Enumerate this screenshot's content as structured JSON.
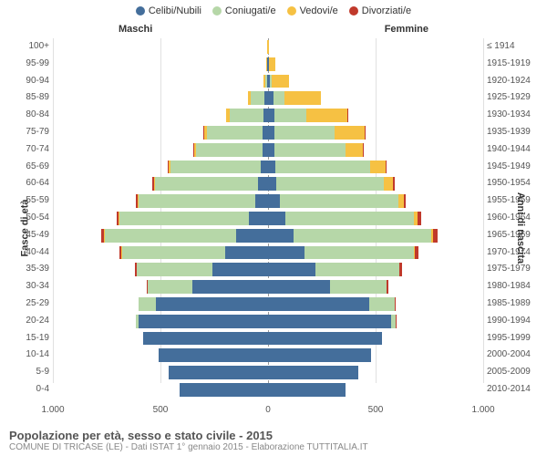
{
  "type": "population-pyramid",
  "legend": [
    {
      "label": "Celibi/Nubili",
      "color": "#446e9b"
    },
    {
      "label": "Coniugati/e",
      "color": "#b6d7a8"
    },
    {
      "label": "Vedovi/e",
      "color": "#f6c143"
    },
    {
      "label": "Divorziati/e",
      "color": "#c0392b"
    }
  ],
  "header_left": "Maschi",
  "header_right": "Femmine",
  "y_left_title": "Fasce di età",
  "y_right_title": "Anni di nascita",
  "xmax": 1000,
  "x_ticks_left": [
    1000,
    500,
    0
  ],
  "x_ticks_right": [
    500,
    1000
  ],
  "x_tick_labels_left": [
    "1.000",
    "500",
    "0"
  ],
  "x_tick_labels_right": [
    "500",
    "1.000"
  ],
  "grid_color": "#e0e0e0",
  "background_color": "#ffffff",
  "bar_gap": 2,
  "rows": [
    {
      "age": "100+",
      "birth": "≤ 1914",
      "m": [
        0,
        0,
        3,
        0
      ],
      "f": [
        0,
        0,
        6,
        0
      ]
    },
    {
      "age": "95-99",
      "birth": "1915-1919",
      "m": [
        3,
        0,
        4,
        0
      ],
      "f": [
        3,
        3,
        30,
        0
      ]
    },
    {
      "age": "90-94",
      "birth": "1920-1924",
      "m": [
        6,
        8,
        6,
        0
      ],
      "f": [
        8,
        10,
        80,
        0
      ]
    },
    {
      "age": "85-89",
      "birth": "1925-1929",
      "m": [
        15,
        65,
        15,
        0
      ],
      "f": [
        25,
        50,
        170,
        0
      ]
    },
    {
      "age": "80-84",
      "birth": "1930-1934",
      "m": [
        20,
        160,
        15,
        0
      ],
      "f": [
        30,
        150,
        190,
        3
      ]
    },
    {
      "age": "75-79",
      "birth": "1935-1939",
      "m": [
        25,
        260,
        12,
        3
      ],
      "f": [
        30,
        280,
        140,
        5
      ]
    },
    {
      "age": "70-74",
      "birth": "1940-1944",
      "m": [
        25,
        310,
        10,
        3
      ],
      "f": [
        30,
        330,
        80,
        5
      ]
    },
    {
      "age": "65-69",
      "birth": "1945-1949",
      "m": [
        35,
        420,
        8,
        5
      ],
      "f": [
        35,
        440,
        70,
        8
      ]
    },
    {
      "age": "60-64",
      "birth": "1950-1954",
      "m": [
        45,
        480,
        6,
        8
      ],
      "f": [
        40,
        500,
        40,
        10
      ]
    },
    {
      "age": "55-59",
      "birth": "1955-1959",
      "m": [
        60,
        540,
        5,
        10
      ],
      "f": [
        55,
        550,
        25,
        12
      ]
    },
    {
      "age": "50-54",
      "birth": "1960-1964",
      "m": [
        90,
        600,
        3,
        12
      ],
      "f": [
        80,
        600,
        15,
        18
      ]
    },
    {
      "age": "45-49",
      "birth": "1965-1969",
      "m": [
        150,
        610,
        2,
        15
      ],
      "f": [
        120,
        640,
        8,
        20
      ]
    },
    {
      "age": "40-44",
      "birth": "1970-1974",
      "m": [
        200,
        480,
        1,
        10
      ],
      "f": [
        170,
        510,
        4,
        15
      ]
    },
    {
      "age": "35-39",
      "birth": "1975-1979",
      "m": [
        260,
        350,
        0,
        8
      ],
      "f": [
        220,
        390,
        2,
        10
      ]
    },
    {
      "age": "30-34",
      "birth": "1980-1984",
      "m": [
        350,
        210,
        0,
        5
      ],
      "f": [
        290,
        260,
        0,
        8
      ]
    },
    {
      "age": "25-29",
      "birth": "1985-1989",
      "m": [
        520,
        80,
        0,
        2
      ],
      "f": [
        470,
        120,
        0,
        5
      ]
    },
    {
      "age": "20-24",
      "birth": "1990-1994",
      "m": [
        600,
        15,
        0,
        0
      ],
      "f": [
        570,
        25,
        0,
        2
      ]
    },
    {
      "age": "15-19",
      "birth": "1995-1999",
      "m": [
        580,
        0,
        0,
        0
      ],
      "f": [
        530,
        0,
        0,
        0
      ]
    },
    {
      "age": "10-14",
      "birth": "2000-2004",
      "m": [
        510,
        0,
        0,
        0
      ],
      "f": [
        480,
        0,
        0,
        0
      ]
    },
    {
      "age": "5-9",
      "birth": "2005-2009",
      "m": [
        460,
        0,
        0,
        0
      ],
      "f": [
        420,
        0,
        0,
        0
      ]
    },
    {
      "age": "0-4",
      "birth": "2010-2014",
      "m": [
        410,
        0,
        0,
        0
      ],
      "f": [
        360,
        0,
        0,
        0
      ]
    }
  ],
  "footer_title": "Popolazione per età, sesso e stato civile - 2015",
  "footer_sub": "COMUNE DI TRICASE (LE) - Dati ISTAT 1° gennaio 2015 - Elaborazione TUTTITALIA.IT"
}
